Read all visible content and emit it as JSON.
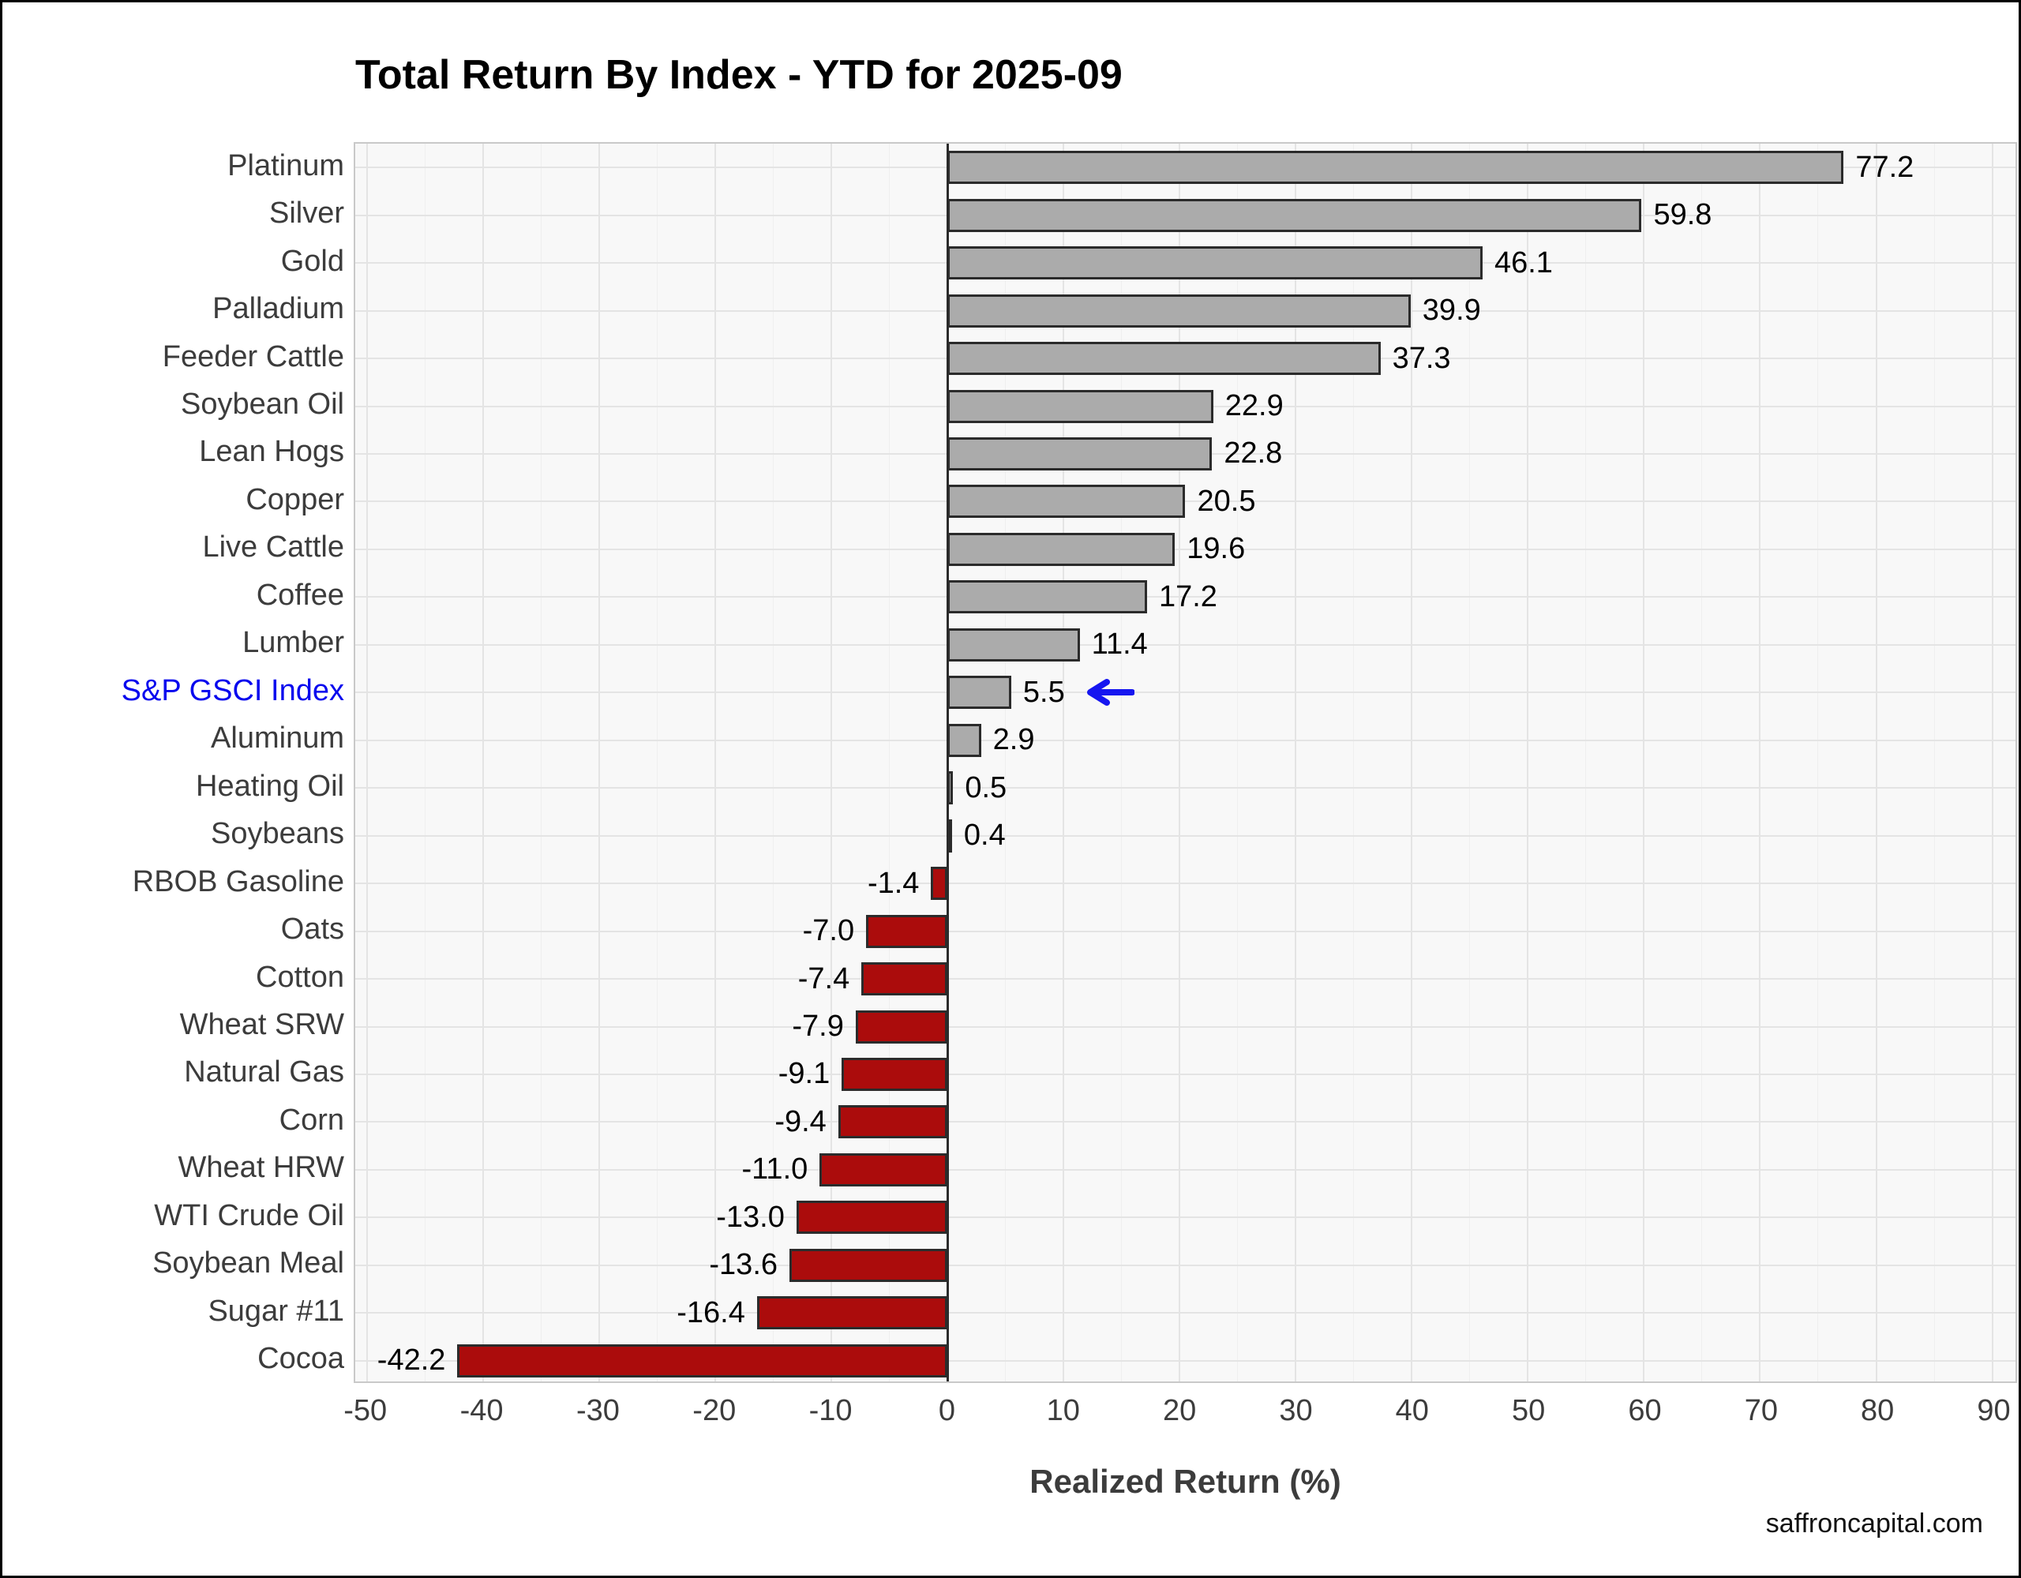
{
  "title": "Total Return By Index - YTD for 2025-09",
  "footer": {
    "source_text": "saffroncapital.com"
  },
  "chart_data": {
    "type": "bar",
    "orientation": "horizontal",
    "title": "Total Return By Index - YTD for 2025-09",
    "xlabel": "Realized Return (%)",
    "ylabel": "",
    "categories": [
      "Platinum",
      "Silver",
      "Gold",
      "Palladium",
      "Feeder Cattle",
      "Soybean Oil",
      "Lean Hogs",
      "Copper",
      "Live Cattle",
      "Coffee",
      "Lumber",
      "S&P GSCI Index",
      "Aluminum",
      "Heating Oil",
      "Soybeans",
      "RBOB Gasoline",
      "Oats",
      "Cotton",
      "Wheat SRW",
      "Natural Gas",
      "Corn",
      "Wheat HRW",
      "WTI Crude Oil",
      "Soybean Meal",
      "Sugar #11",
      "Cocoa"
    ],
    "values": [
      77.2,
      59.8,
      46.1,
      39.9,
      37.3,
      22.9,
      22.8,
      20.5,
      19.6,
      17.2,
      11.4,
      5.5,
      2.9,
      0.5,
      0.4,
      -1.4,
      -7.0,
      -7.4,
      -7.9,
      -9.1,
      -9.4,
      -11.0,
      -13.0,
      -13.6,
      -16.4,
      -42.2
    ],
    "value_labels": [
      "77.2",
      "59.8",
      "46.1",
      "39.9",
      "37.3",
      "22.9",
      "22.8",
      "20.5",
      "19.6",
      "17.2",
      "11.4",
      "5.5",
      "2.9",
      "0.5",
      "0.4",
      "-1.4",
      "-7.0",
      "-7.4",
      "-7.9",
      "-9.1",
      "-9.4",
      "-11.0",
      "-13.0",
      "-13.6",
      "-16.4",
      "-42.2"
    ],
    "xlim": [
      -51,
      92
    ],
    "xticks": [
      -50,
      -40,
      -30,
      -20,
      -10,
      0,
      10,
      20,
      30,
      40,
      50,
      60,
      70,
      80,
      90
    ],
    "grid": "on",
    "legend": "none",
    "highlight_category": "S&P GSCI Index",
    "highlight_marker": "left-arrow",
    "colors": {
      "positive_bar": "#ababab",
      "negative_bar": "#ab0c0c",
      "bar_border": "#2b2b2b",
      "highlight_label": "#0808ee",
      "arrow": "#1616f0",
      "panel_bg": "#f8f8f8",
      "gridline": "#e4e4e4"
    }
  }
}
